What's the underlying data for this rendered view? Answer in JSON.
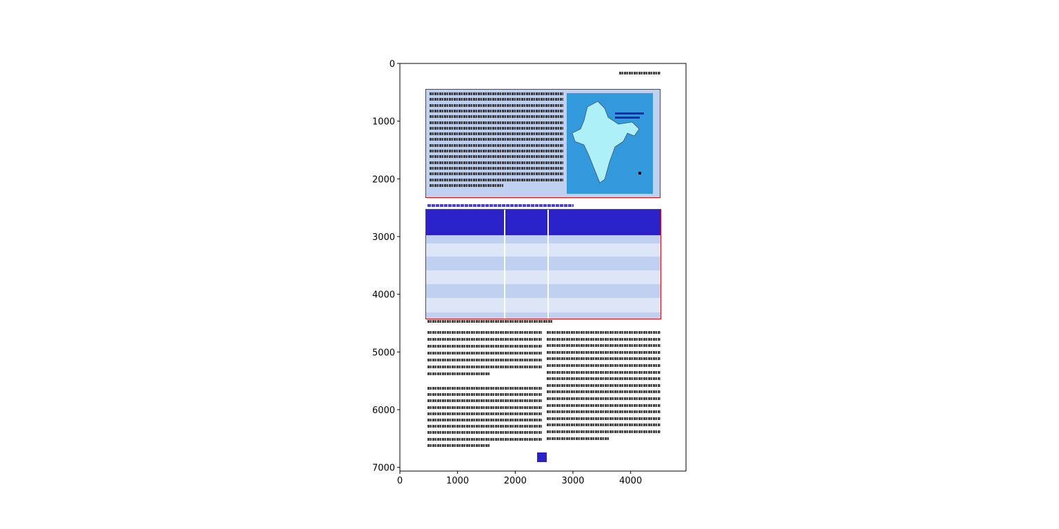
{
  "plot": {
    "x_ticks": [
      "0",
      "1000",
      "2000",
      "3000",
      "4000"
    ],
    "y_ticks": [
      "0",
      "1000",
      "2000",
      "3000",
      "4000",
      "5000",
      "6000",
      "7000"
    ],
    "image_extent": {
      "width": 4960,
      "height": 7016
    }
  },
  "colors": {
    "box_bg": "#c0d0f0",
    "border": "#ff0000",
    "table_header": "#2a22c8",
    "row_light": "#dce6f6",
    "map_bg": "#3399dd",
    "page_number_bg": "#2a22c8"
  }
}
